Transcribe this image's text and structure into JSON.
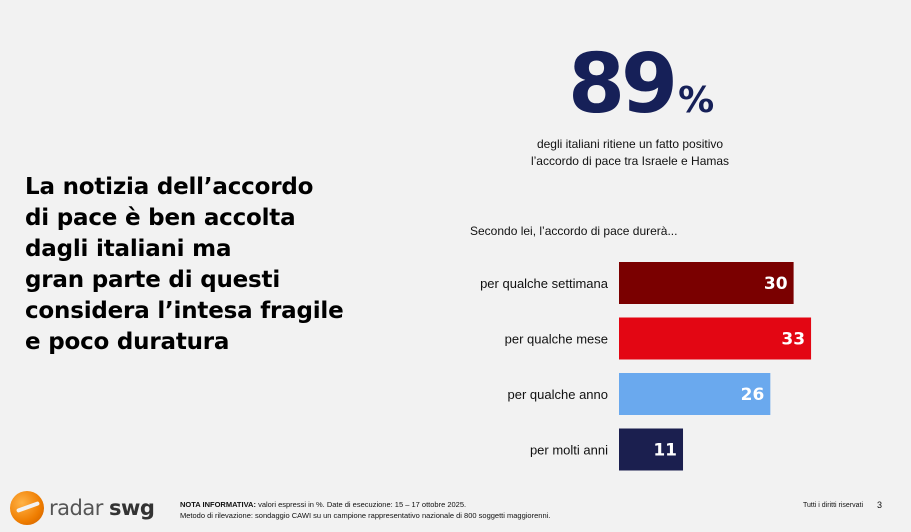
{
  "headline": {
    "lines": [
      "La notizia dell’accordo",
      "di pace è ben accolta",
      "dagli italiani ma",
      "gran parte di questi",
      "considera l’intesa fragile",
      "e poco duratura"
    ]
  },
  "stat": {
    "value": "89",
    "unit": "%",
    "desc_line1": "degli italiani ritiene un fatto positivo",
    "desc_line2": "l’accordo di pace tra Israele e Hamas"
  },
  "question": "Secondo lei, l’accordo di pace durerà...",
  "chart_data": {
    "type": "bar",
    "orientation": "horizontal",
    "categories": [
      "per qualche settimana",
      "per qualche mese",
      "per qualche anno",
      "per molti anni"
    ],
    "values": [
      30,
      33,
      26,
      11
    ],
    "colors": [
      "#7a0000",
      "#e30613",
      "#6aa9ee",
      "#1b1f4f"
    ],
    "value_color": "#ffffff",
    "unit": "%",
    "show_axes": false,
    "grid": false
  },
  "footer": {
    "logo_text_light": "radar",
    "logo_text_bold": "swg",
    "note_label": "NOTA INFORMATIVA:",
    "note_line1": "valori espressi in %. Date di esecuzione: 15 – 17 ottobre 2025.",
    "note_line2": "Metodo di rilevazione: sondaggio CAWI su un campione rappresentativo nazionale di 800 soggetti maggiorenni.",
    "rights": "Tutti i diritti riservati",
    "page": "3"
  },
  "colors": {
    "background": "#f2f2f2",
    "stat_navy": "#162058",
    "logo_orange": "#ef7d00"
  }
}
